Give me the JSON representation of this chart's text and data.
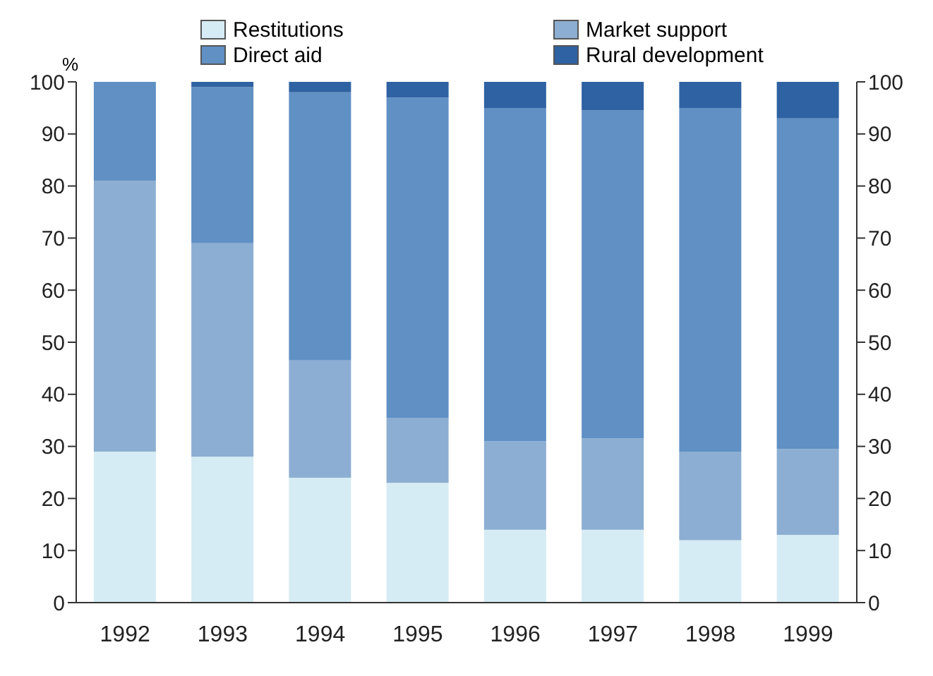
{
  "chart_data": {
    "type": "bar",
    "stacked": true,
    "ylabel": "%",
    "categories": [
      "1992",
      "1993",
      "1994",
      "1995",
      "1996",
      "1997",
      "1998",
      "1999"
    ],
    "series": [
      {
        "name": "Restitutions",
        "color": "#d6ecf4",
        "values": [
          29,
          28,
          24,
          23,
          14,
          14,
          12,
          13
        ]
      },
      {
        "name": "Market support",
        "color": "#8caed2",
        "values": [
          52,
          41,
          22.5,
          12.5,
          17,
          17.5,
          17,
          16.5
        ]
      },
      {
        "name": "Direct aid",
        "color": "#6090c4",
        "values": [
          19,
          30,
          51.5,
          61.5,
          64,
          63,
          66,
          63.5
        ]
      },
      {
        "name": "Rural development",
        "color": "#2f62a2",
        "values": [
          0,
          1,
          2,
          3,
          5,
          5.5,
          5,
          7
        ]
      }
    ],
    "ylim": [
      0,
      100
    ],
    "yticks": [
      0,
      10,
      20,
      30,
      40,
      50,
      60,
      70,
      80,
      90,
      100
    ],
    "y2lim": [
      0,
      100
    ],
    "y2ticks": [
      0,
      10,
      20,
      30,
      40,
      50,
      60,
      70,
      80,
      90,
      100
    ],
    "legend": "top",
    "grid": false
  }
}
